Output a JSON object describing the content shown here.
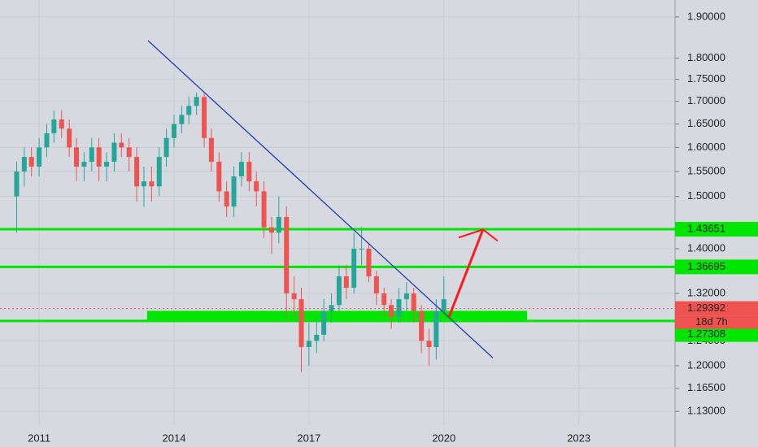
{
  "chart_data": {
    "type": "candlestick",
    "log_scale": true,
    "grid": true,
    "up_color": "#26a69a",
    "down_color": "#ef5350",
    "x": [
      2010.5,
      2010.67,
      2010.83,
      2011.0,
      2011.17,
      2011.33,
      2011.5,
      2011.67,
      2011.83,
      2012.0,
      2012.17,
      2012.33,
      2012.5,
      2012.67,
      2012.83,
      2013.0,
      2013.17,
      2013.33,
      2013.5,
      2013.67,
      2013.83,
      2014.0,
      2014.17,
      2014.33,
      2014.5,
      2014.67,
      2014.83,
      2015.0,
      2015.17,
      2015.33,
      2015.5,
      2015.67,
      2015.83,
      2016.0,
      2016.17,
      2016.33,
      2016.5,
      2016.67,
      2016.83,
      2017.0,
      2017.17,
      2017.33,
      2017.5,
      2017.67,
      2017.83,
      2018.0,
      2018.17,
      2018.33,
      2018.5,
      2018.67,
      2018.83,
      2019.0,
      2019.17,
      2019.33,
      2019.5,
      2019.67,
      2019.83,
      2020.0
    ],
    "open": [
      1.5,
      1.55,
      1.58,
      1.56,
      1.6,
      1.63,
      1.66,
      1.64,
      1.6,
      1.56,
      1.57,
      1.6,
      1.56,
      1.57,
      1.61,
      1.6,
      1.58,
      1.52,
      1.53,
      1.52,
      1.58,
      1.62,
      1.65,
      1.67,
      1.69,
      1.71,
      1.62,
      1.57,
      1.51,
      1.48,
      1.54,
      1.57,
      1.53,
      1.51,
      1.44,
      1.43,
      1.46,
      1.32,
      1.31,
      1.23,
      1.24,
      1.25,
      1.29,
      1.3,
      1.35,
      1.33,
      1.4,
      1.4,
      1.35,
      1.32,
      1.3,
      1.28,
      1.31,
      1.32,
      1.29,
      1.24,
      1.23,
      1.29
    ],
    "high": [
      1.57,
      1.6,
      1.6,
      1.62,
      1.65,
      1.68,
      1.68,
      1.66,
      1.62,
      1.59,
      1.62,
      1.62,
      1.59,
      1.63,
      1.63,
      1.62,
      1.6,
      1.56,
      1.56,
      1.6,
      1.64,
      1.67,
      1.69,
      1.71,
      1.72,
      1.72,
      1.64,
      1.59,
      1.53,
      1.56,
      1.59,
      1.59,
      1.55,
      1.53,
      1.46,
      1.5,
      1.48,
      1.35,
      1.33,
      1.27,
      1.28,
      1.31,
      1.32,
      1.37,
      1.37,
      1.43,
      1.44,
      1.41,
      1.36,
      1.33,
      1.31,
      1.33,
      1.34,
      1.33,
      1.3,
      1.26,
      1.31,
      1.35
    ],
    "low": [
      1.43,
      1.52,
      1.54,
      1.54,
      1.58,
      1.61,
      1.62,
      1.58,
      1.53,
      1.53,
      1.55,
      1.53,
      1.53,
      1.55,
      1.58,
      1.55,
      1.49,
      1.48,
      1.49,
      1.5,
      1.56,
      1.6,
      1.63,
      1.65,
      1.67,
      1.6,
      1.55,
      1.49,
      1.46,
      1.46,
      1.52,
      1.51,
      1.48,
      1.42,
      1.39,
      1.41,
      1.28,
      1.28,
      1.19,
      1.2,
      1.22,
      1.24,
      1.27,
      1.29,
      1.31,
      1.32,
      1.37,
      1.34,
      1.3,
      1.28,
      1.26,
      1.27,
      1.29,
      1.27,
      1.22,
      1.2,
      1.21,
      1.28
    ],
    "close": [
      1.55,
      1.58,
      1.56,
      1.6,
      1.63,
      1.66,
      1.64,
      1.6,
      1.56,
      1.57,
      1.6,
      1.56,
      1.57,
      1.61,
      1.6,
      1.58,
      1.52,
      1.53,
      1.52,
      1.58,
      1.62,
      1.65,
      1.67,
      1.69,
      1.71,
      1.62,
      1.57,
      1.51,
      1.48,
      1.54,
      1.57,
      1.53,
      1.51,
      1.44,
      1.43,
      1.46,
      1.32,
      1.31,
      1.23,
      1.24,
      1.25,
      1.29,
      1.3,
      1.35,
      1.33,
      1.4,
      1.4,
      1.35,
      1.32,
      1.3,
      1.28,
      1.31,
      1.32,
      1.29,
      1.24,
      1.23,
      1.29,
      1.31
    ],
    "xlim": [
      2010.13,
      2025.14
    ],
    "xticks": [
      2011,
      2014,
      2017,
      2020,
      2023
    ],
    "ylim": [
      1.111,
      1.943
    ],
    "yticks": [
      {
        "value": 1.9,
        "label": "1.90000"
      },
      {
        "value": 1.8,
        "label": "1.80000"
      },
      {
        "value": 1.75,
        "label": "1.75000"
      },
      {
        "value": 1.7,
        "label": "1.70000"
      },
      {
        "value": 1.65,
        "label": "1.65000"
      },
      {
        "value": 1.6,
        "label": "1.60000"
      },
      {
        "value": 1.55,
        "label": "1.55000"
      },
      {
        "value": 1.5,
        "label": "1.50000"
      },
      {
        "value": 1.4,
        "label": "1.40000"
      },
      {
        "value": 1.32,
        "label": "1.32000"
      },
      {
        "value": 1.24,
        "label": "1.24000"
      },
      {
        "value": 1.2,
        "label": "1.20000"
      },
      {
        "value": 1.165,
        "label": "1.16500"
      },
      {
        "value": 1.13,
        "label": "1.13000"
      }
    ],
    "levels": [
      1.43651,
      1.36695,
      1.27308
    ],
    "level_color": "#00e600",
    "band": {
      "x": [
        2013.4,
        2021.85
      ],
      "y": [
        1.275,
        1.29
      ]
    },
    "last_price": 1.29392,
    "last_price_color": "#ef5350",
    "countdown": "18d 7h",
    "trendline": {
      "x": [
        2013.42,
        2021.09
      ],
      "y": [
        1.842,
        1.2125
      ],
      "color": "#1f3fb0"
    },
    "arrow": {
      "x": [
        2020.11,
        2020.87
      ],
      "y": [
        1.279,
        1.436
      ],
      "color": "#ff1a1a"
    }
  }
}
